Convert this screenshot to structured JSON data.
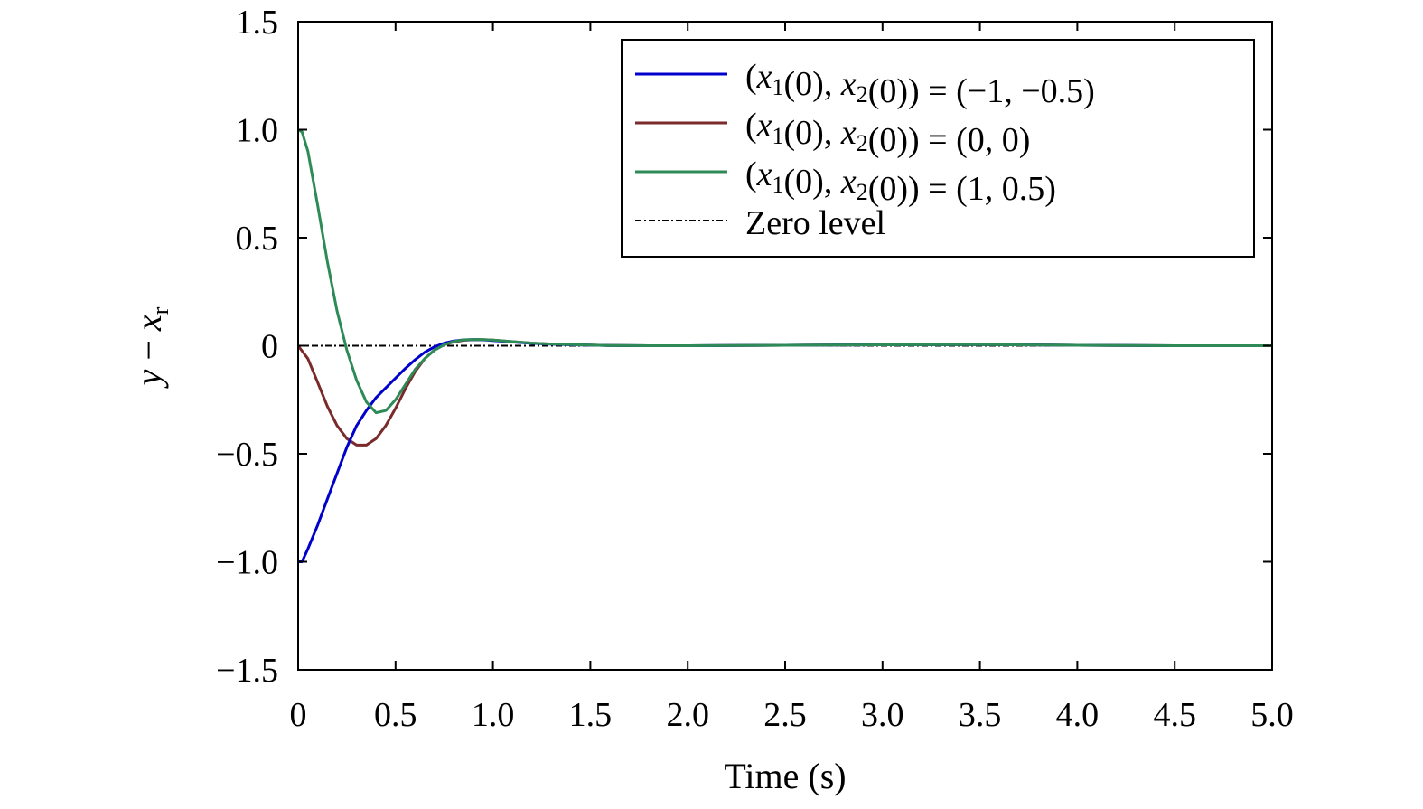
{
  "chart_data": {
    "type": "line",
    "xlabel": "Time (s)",
    "ylabel": {
      "main": "y",
      "minus": " − ",
      "var": "x",
      "sub": "r"
    },
    "xlim": [
      0,
      5
    ],
    "ylim": [
      -1.5,
      1.5
    ],
    "xticks": [
      0,
      0.5,
      1,
      1.5,
      2,
      2.5,
      3,
      3.5,
      4,
      4.5,
      5
    ],
    "xtick_labels": [
      "0",
      "0.5",
      "1.0",
      "1.5",
      "2.0",
      "2.5",
      "3.0",
      "3.5",
      "4.0",
      "4.5",
      "5.0"
    ],
    "yticks": [
      1.5,
      1,
      0.5,
      0,
      -0.5,
      -1,
      -1.5
    ],
    "ytick_labels": [
      "1.5",
      "1.0",
      "0.5",
      "0",
      "−0.5",
      "−1.0",
      "−1.5"
    ],
    "grid": false,
    "legend_position": "top-right",
    "series": [
      {
        "id": "s1",
        "name": "(x1(0), x2(0)) = (−1, −0.5)",
        "legend_value": "(−1, −0.5)",
        "color": "#0000cc",
        "style": "solid",
        "x": [
          0,
          0.02,
          0.05,
          0.1,
          0.15,
          0.2,
          0.25,
          0.3,
          0.35,
          0.4,
          0.45,
          0.5,
          0.55,
          0.6,
          0.65,
          0.7,
          0.75,
          0.8,
          0.85,
          0.9,
          0.95,
          1.0,
          1.1,
          1.2,
          1.3,
          1.4,
          1.6,
          1.8,
          2.0,
          2.5,
          3.0,
          3.5,
          4.0,
          4.5,
          5.0
        ],
        "y": [
          -1.0,
          -1.0,
          -0.94,
          -0.83,
          -0.71,
          -0.59,
          -0.47,
          -0.37,
          -0.3,
          -0.24,
          -0.195,
          -0.15,
          -0.105,
          -0.065,
          -0.03,
          -0.005,
          0.012,
          0.022,
          0.027,
          0.028,
          0.027,
          0.024,
          0.017,
          0.011,
          0.007,
          0.004,
          0.001,
          0.0,
          0.0,
          0.002,
          0.004,
          0.005,
          0.002,
          0.0,
          0.0
        ]
      },
      {
        "id": "s2",
        "name": "(x1(0), x2(0)) = (0, 0)",
        "legend_value": "(0, 0)",
        "color": "#7a2a2a",
        "style": "solid",
        "x": [
          0,
          0.05,
          0.1,
          0.15,
          0.2,
          0.25,
          0.3,
          0.35,
          0.4,
          0.45,
          0.5,
          0.55,
          0.6,
          0.65,
          0.7,
          0.75,
          0.8,
          0.85,
          0.9,
          0.95,
          1.0,
          1.1,
          1.2,
          1.3,
          1.4,
          1.6,
          1.8,
          2.0,
          2.5,
          3.0,
          3.5,
          4.0,
          4.5,
          5.0
        ],
        "y": [
          0.0,
          -0.06,
          -0.17,
          -0.28,
          -0.37,
          -0.43,
          -0.46,
          -0.46,
          -0.43,
          -0.37,
          -0.29,
          -0.2,
          -0.12,
          -0.06,
          -0.02,
          0.005,
          0.018,
          0.025,
          0.028,
          0.028,
          0.026,
          0.019,
          0.012,
          0.008,
          0.005,
          0.001,
          0.0,
          0.0,
          0.002,
          0.004,
          0.005,
          0.002,
          0.0,
          0.0
        ]
      },
      {
        "id": "s3",
        "name": "(x1(0), x2(0)) = (1, 0.5)",
        "legend_value": "(1, 0.5)",
        "color": "#2e8b57",
        "style": "solid",
        "x": [
          0,
          0.02,
          0.05,
          0.1,
          0.15,
          0.2,
          0.25,
          0.3,
          0.35,
          0.4,
          0.45,
          0.5,
          0.55,
          0.6,
          0.65,
          0.7,
          0.75,
          0.8,
          0.85,
          0.9,
          0.95,
          1.0,
          1.1,
          1.2,
          1.3,
          1.4,
          1.6,
          1.8,
          2.0,
          2.5,
          3.0,
          3.5,
          4.0,
          4.5,
          5.0
        ],
        "y": [
          1.0,
          0.99,
          0.9,
          0.65,
          0.39,
          0.16,
          -0.02,
          -0.16,
          -0.26,
          -0.31,
          -0.3,
          -0.25,
          -0.18,
          -0.11,
          -0.06,
          -0.02,
          0.005,
          0.02,
          0.027,
          0.029,
          0.028,
          0.026,
          0.019,
          0.012,
          0.008,
          0.005,
          0.001,
          0.0,
          0.0,
          0.002,
          0.004,
          0.005,
          0.002,
          0.0,
          0.0
        ]
      },
      {
        "id": "zero",
        "name": "Zero level",
        "color": "#000000",
        "style": "dashdot",
        "x": [
          0,
          5
        ],
        "y": [
          0,
          0
        ]
      }
    ],
    "legend_prefix": {
      "open": "(",
      "x": "x",
      "sub1": "1",
      "mid": "(0), ",
      "sub2": "2",
      "close": "(0)) = "
    }
  }
}
